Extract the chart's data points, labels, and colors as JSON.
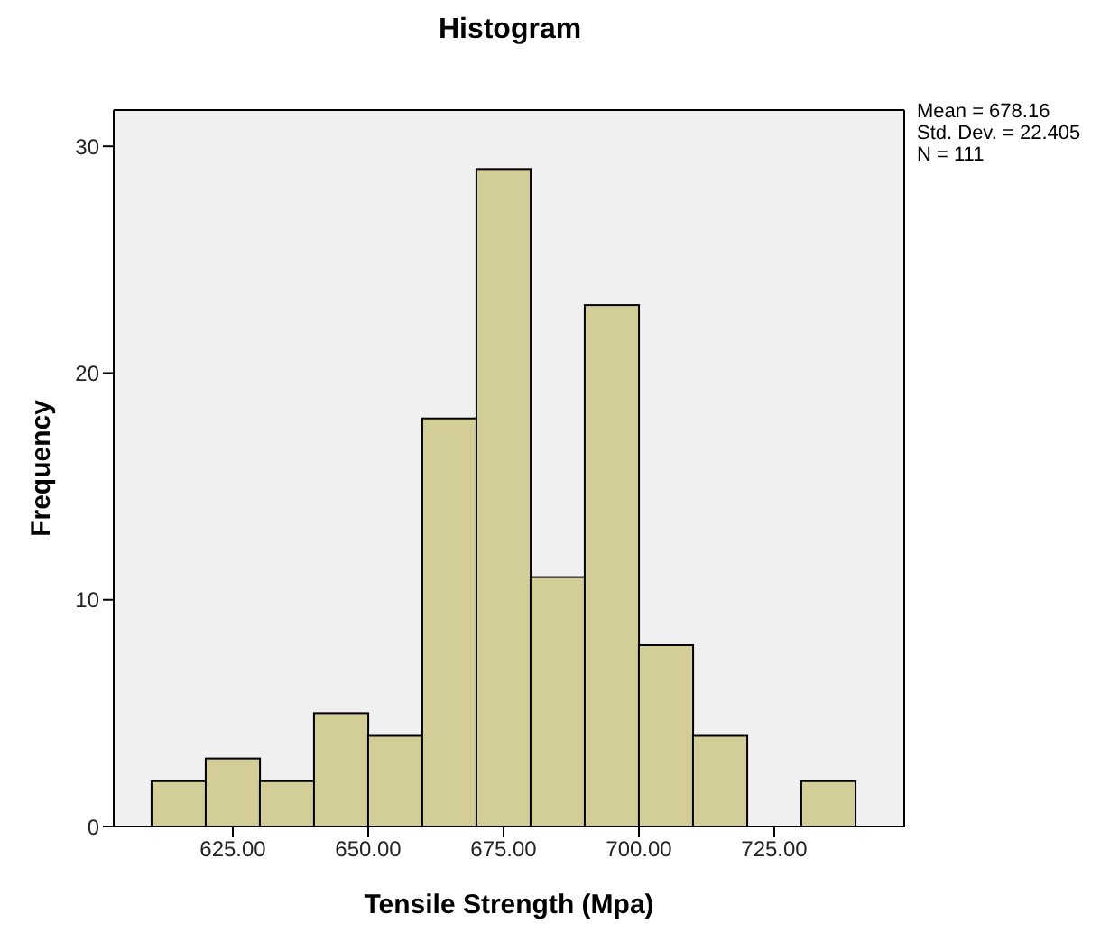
{
  "chart_data": {
    "type": "histogram",
    "title": "Histogram",
    "xlabel": "Tensile Strength (Mpa)",
    "ylabel": "Frequency",
    "bins": [
      610,
      620,
      630,
      640,
      650,
      660,
      670,
      680,
      690,
      700,
      710,
      720,
      730,
      740
    ],
    "values": [
      2,
      3,
      2,
      5,
      4,
      18,
      29,
      11,
      23,
      8,
      4,
      0,
      2
    ],
    "color": "#d3ce98",
    "xlim": [
      603,
      749
    ],
    "xticks": [
      {
        "value": 625,
        "label": "625.00"
      },
      {
        "value": 650,
        "label": "650.00"
      },
      {
        "value": 675,
        "label": "675.00"
      },
      {
        "value": 700,
        "label": "700.00"
      },
      {
        "value": 725,
        "label": "725.00"
      }
    ],
    "ylim": [
      0,
      31.6
    ],
    "yticks": [
      0,
      10,
      20,
      30
    ],
    "annotations": [
      "Mean = 678.16",
      "Std. Dev. = 22.405",
      "N = 111"
    ]
  }
}
